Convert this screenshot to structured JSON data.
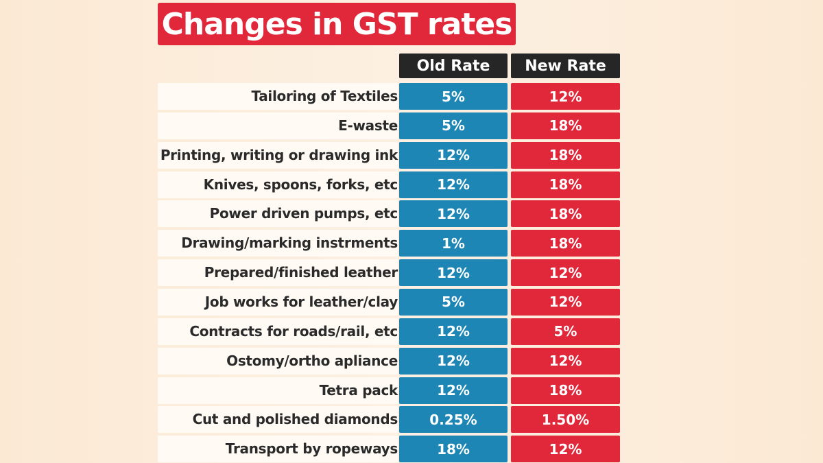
{
  "title": "Changes in GST rates",
  "colors": {
    "title_bg": "#e0283a",
    "header_bg": "#262626",
    "old_rate": "#1d86b4",
    "new_rate": "#e0283a",
    "label_bg": "#fffbf4",
    "page_bg": "#fcebd8"
  },
  "chart_data": {
    "type": "table",
    "title": "Changes in GST rates",
    "columns": [
      "Old Rate",
      "New Rate"
    ],
    "rows": [
      {
        "item": "Tailoring of Textiles",
        "old_rate": "5%",
        "new_rate": "12%"
      },
      {
        "item": "E-waste",
        "old_rate": "5%",
        "new_rate": "18%"
      },
      {
        "item": "Printing, writing or drawing ink",
        "old_rate": "12%",
        "new_rate": "18%"
      },
      {
        "item": "Knives, spoons, forks, etc",
        "old_rate": "12%",
        "new_rate": "18%"
      },
      {
        "item": "Power driven pumps, etc",
        "old_rate": "12%",
        "new_rate": "18%"
      },
      {
        "item": "Drawing/marking instrments",
        "old_rate": "1%",
        "new_rate": "18%"
      },
      {
        "item": "Prepared/finished leather",
        "old_rate": "12%",
        "new_rate": "12%"
      },
      {
        "item": "Job works for leather/clay",
        "old_rate": "5%",
        "new_rate": "12%"
      },
      {
        "item": "Contracts for roads/rail, etc",
        "old_rate": "12%",
        "new_rate": "5%"
      },
      {
        "item": "Ostomy/ortho apliance",
        "old_rate": "12%",
        "new_rate": "12%"
      },
      {
        "item": "Tetra pack",
        "old_rate": "12%",
        "new_rate": "18%"
      },
      {
        "item": "Cut and polished diamonds",
        "old_rate": "0.25%",
        "new_rate": "1.50%"
      },
      {
        "item": "Transport by ropeways",
        "old_rate": "18%",
        "new_rate": "12%"
      }
    ]
  }
}
